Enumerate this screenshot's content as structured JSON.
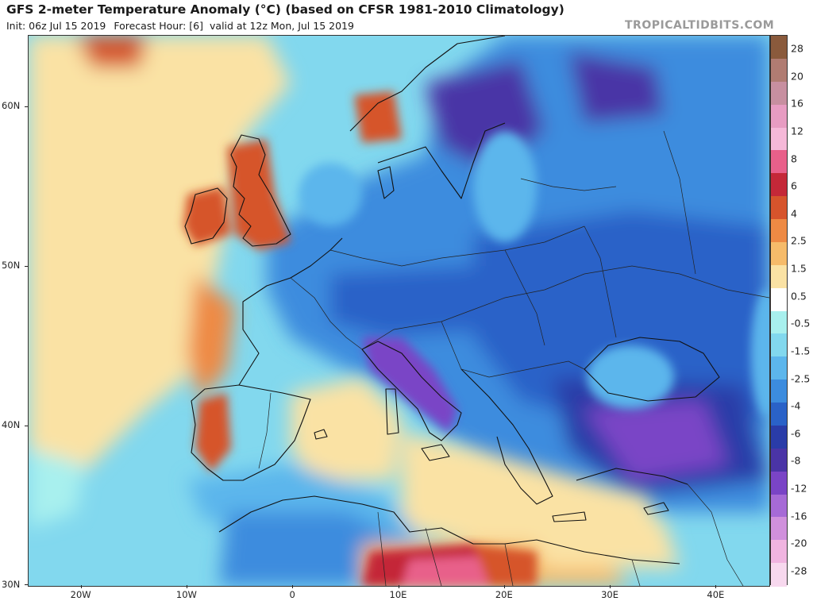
{
  "header": {
    "title": "GFS 2-meter Temperature Anomaly (°C) (based on CFSR 1981-2010 Climatology)",
    "init": "Init: 06z Jul 15 2019",
    "forecast_hour": "Forecast Hour: [6]",
    "valid": "valid at 12z Mon, Jul 15 2019",
    "watermark": "TROPICALTIDBITS.COM"
  },
  "map": {
    "lat_labels": [
      "60N",
      "50N",
      "40N",
      "30N"
    ],
    "lon_labels": [
      "20W",
      "10W",
      "0",
      "10E",
      "20E",
      "30E",
      "40E"
    ],
    "lat_values": [
      60,
      50,
      40,
      30
    ],
    "lon_values": [
      -20,
      -10,
      0,
      10,
      20,
      30,
      40
    ],
    "extent": {
      "lon_min": -25,
      "lon_max": 45,
      "lat_min": 30,
      "lat_max": 64.5
    }
  },
  "colorbar": {
    "labels": [
      "28",
      "20",
      "16",
      "12",
      "8",
      "6",
      "4",
      "2.5",
      "1.5",
      "0.5",
      "-0.5",
      "-1.5",
      "-2.5",
      "-4",
      "-6",
      "-8",
      "-12",
      "-16",
      "-20",
      "-28"
    ],
    "colors": [
      "#8a5a3c",
      "#b07c72",
      "#c78fa0",
      "#e79cc2",
      "#f5b8d8",
      "#e8608a",
      "#c42838",
      "#d6542c",
      "#ee8a44",
      "#f6bb6a",
      "#fae2a4",
      "#ffffff",
      "#a8f0ee",
      "#82d8ee",
      "#5cb6ec",
      "#3c8cde",
      "#2a62c8",
      "#2a3ca8",
      "#4a34a6",
      "#7a44c6",
      "#a66ad6",
      "#d090dc",
      "#f0b4e0",
      "#f7d8ee"
    ]
  }
}
